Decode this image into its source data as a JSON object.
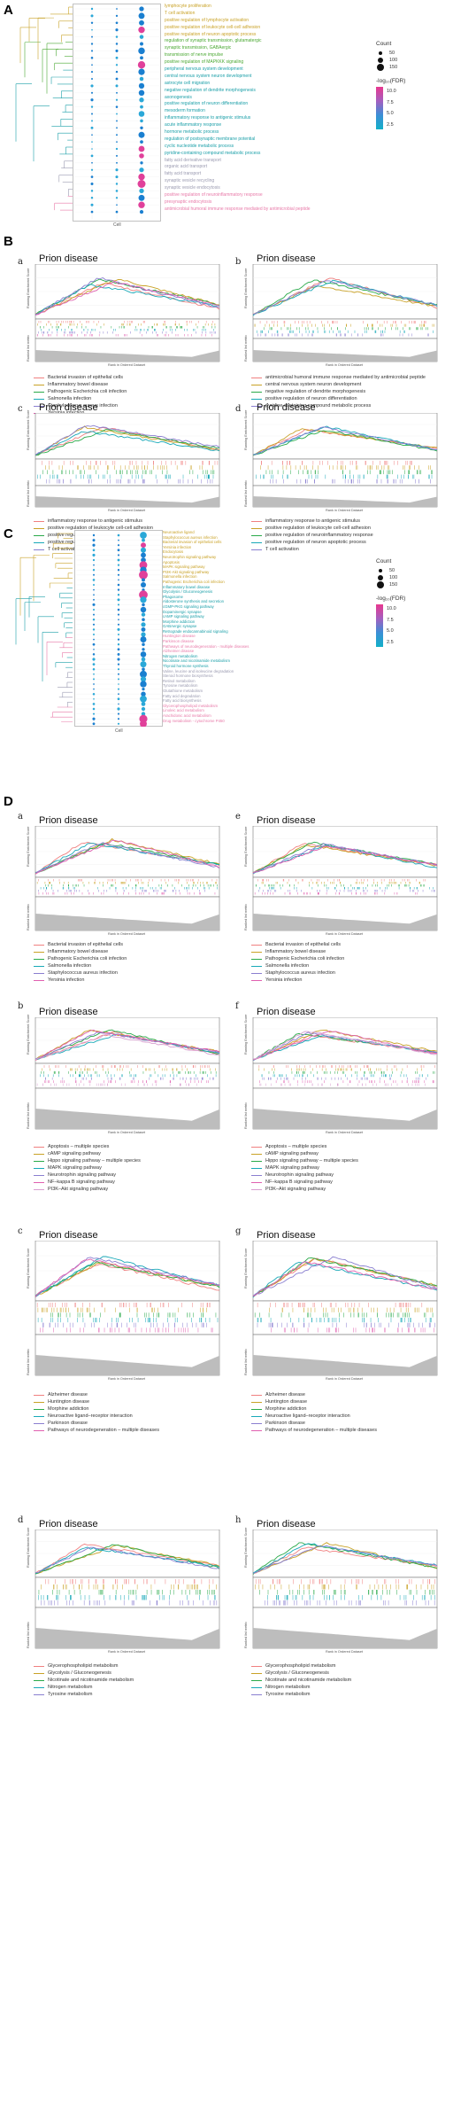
{
  "panels": {
    "A": "A",
    "B": "B",
    "C": "C",
    "D": "D"
  },
  "gsea_title": "Prion disease",
  "axis": {
    "res": "Running Enrichment Score",
    "ranked": "Ranked list metric",
    "x": "Rank in Ordered Dataset"
  },
  "dotplot_A": {
    "count_title": "Count",
    "count_values": [
      "50",
      "100",
      "150"
    ],
    "fdr_title": "-log₁₀(FDR)",
    "fdr_values": [
      "10.0",
      "7.5",
      "5.0",
      "2.5"
    ],
    "x_title": "Cell",
    "terms": [
      {
        "label": "lymphocyte proliferation",
        "color": "#c9a227"
      },
      {
        "label": "T cell activation",
        "color": "#c9a227"
      },
      {
        "label": "positive regulation of lymphocyte activation",
        "color": "#c9a227"
      },
      {
        "label": "positive regulation of leukocyte cell-cell adhesion",
        "color": "#c9a227"
      },
      {
        "label": "positive regulation of neuron apoptotic process",
        "color": "#c9a227"
      },
      {
        "label": "regulation of synaptic transmission, glutamatergic",
        "color": "#4aa832"
      },
      {
        "label": "synaptic transmission, GABAergic",
        "color": "#4aa832"
      },
      {
        "label": "transmission of nerve impulse",
        "color": "#4aa832"
      },
      {
        "label": "positive regulation of MAPKKK signaling",
        "color": "#4aa832"
      },
      {
        "label": "peripheral nervous system development",
        "color": "#1a9fa8"
      },
      {
        "label": "central nervous system neuron development",
        "color": "#1a9fa8"
      },
      {
        "label": "astrocyte cell migration",
        "color": "#1a9fa8"
      },
      {
        "label": "negative regulation of dendrite morphogenesis",
        "color": "#1a9fa8"
      },
      {
        "label": "axonogenesis",
        "color": "#1a9fa8"
      },
      {
        "label": "positive regulation of neuron differentiation",
        "color": "#1a9fa8"
      },
      {
        "label": "mesoderm formation",
        "color": "#1a9fa8"
      },
      {
        "label": "inflammatory response to antigenic stimulus",
        "color": "#1a9fa8"
      },
      {
        "label": "acute inflammatory response",
        "color": "#1a9fa8"
      },
      {
        "label": "hormone metabolic process",
        "color": "#1a9fa8"
      },
      {
        "label": "regulation of postsynaptic membrane potential",
        "color": "#1a9fa8"
      },
      {
        "label": "cyclic nucleotide metabolic process",
        "color": "#1a9fa8"
      },
      {
        "label": "pyridine-containing compound metabolic process",
        "color": "#1a9fa8"
      },
      {
        "label": "fatty acid derivative transport",
        "color": "#9a9ab0"
      },
      {
        "label": "organic acid transport",
        "color": "#9a9ab0"
      },
      {
        "label": "fatty acid transport",
        "color": "#9a9ab0"
      },
      {
        "label": "synaptic vesicle recycling",
        "color": "#9a9ab0"
      },
      {
        "label": "synaptic vesicle endocytosis",
        "color": "#9a9ab0"
      },
      {
        "label": "positive regulation of neuroinflammatory response",
        "color": "#e879a8"
      },
      {
        "label": "presynaptic endocytosis",
        "color": "#e879a8"
      },
      {
        "label": "antimicrobial humoral immune response mediated by antimicrobial peptide",
        "color": "#e879a8"
      }
    ]
  },
  "dotplot_C": {
    "count_title": "Count",
    "count_values": [
      "50",
      "100",
      "150"
    ],
    "fdr_title": "-log₁₀(FDR)",
    "fdr_values": [
      "10.0",
      "7.5",
      "5.0",
      "2.5"
    ],
    "x_title": "Cell",
    "terms": [
      {
        "label": "Neuroactive ligand",
        "color": "#c9a227"
      },
      {
        "label": "Staphylococcus aureus infection",
        "color": "#c9a227"
      },
      {
        "label": "Bacterial invasion of epithelial cells",
        "color": "#c9a227"
      },
      {
        "label": "Yersinia infection",
        "color": "#c9a227"
      },
      {
        "label": "Endocytosis",
        "color": "#c9a227"
      },
      {
        "label": "Neurotrophin signaling pathway",
        "color": "#c9a227"
      },
      {
        "label": "Apoptosis",
        "color": "#c9a227"
      },
      {
        "label": "MAPK signaling pathway",
        "color": "#c9a227"
      },
      {
        "label": "PI3K-Akt signaling pathway",
        "color": "#c9a227"
      },
      {
        "label": "Salmonella infection",
        "color": "#c9a227"
      },
      {
        "label": "Pathogenic Escherichia coli infection",
        "color": "#c9a227"
      },
      {
        "label": "Inflammatory bowel disease",
        "color": "#1a9fa8"
      },
      {
        "label": "Glycolysis / Gluconeogenesis",
        "color": "#1a9fa8"
      },
      {
        "label": "Phagosome",
        "color": "#1a9fa8"
      },
      {
        "label": "Aldosterone synthesis and secretion",
        "color": "#1a9fa8"
      },
      {
        "label": "cGMP-PKG signaling pathway",
        "color": "#1a9fa8"
      },
      {
        "label": "Dopaminergic synapse",
        "color": "#1a9fa8"
      },
      {
        "label": "cAMP signaling pathway",
        "color": "#1a9fa8"
      },
      {
        "label": "Morphine addiction",
        "color": "#1a9fa8"
      },
      {
        "label": "GABAergic synapse",
        "color": "#1a9fa8"
      },
      {
        "label": "Retrograde endocannabinoid signaling",
        "color": "#1a9fa8"
      },
      {
        "label": "Huntington disease",
        "color": "#e879a8"
      },
      {
        "label": "Parkinson disease",
        "color": "#e879a8"
      },
      {
        "label": "Pathways of neurodegeneration - multiple diseases",
        "color": "#e879a8"
      },
      {
        "label": "Alzheimer disease",
        "color": "#e879a8"
      },
      {
        "label": "Nitrogen metabolism",
        "color": "#1a9fa8"
      },
      {
        "label": "Nicotinate and nicotinamide metabolism",
        "color": "#1a9fa8"
      },
      {
        "label": "Thyroid hormone synthesis",
        "color": "#1a9fa8"
      },
      {
        "label": "Valine, leucine and isoleucine degradation",
        "color": "#9a9ab0"
      },
      {
        "label": "Steroid hormone biosynthesis",
        "color": "#9a9ab0"
      },
      {
        "label": "Retinol metabolism",
        "color": "#9a9ab0"
      },
      {
        "label": "Tyrosine metabolism",
        "color": "#9a9ab0"
      },
      {
        "label": "Glutathione metabolism",
        "color": "#9a9ab0"
      },
      {
        "label": "Fatty acid degradation",
        "color": "#9a9ab0"
      },
      {
        "label": "Fatty acid biosynthesis",
        "color": "#9a9ab0"
      },
      {
        "label": "Glycerophospholipid metabolism",
        "color": "#e879a8"
      },
      {
        "label": "Linoleic acid metabolism",
        "color": "#e879a8"
      },
      {
        "label": "Arachidonic acid metabolism",
        "color": "#e879a8"
      },
      {
        "label": "Drug metabolism - cytochrome P450",
        "color": "#e879a8"
      }
    ]
  },
  "gsea_B": [
    {
      "letter": "a",
      "legend": [
        "Bacterial invasion of epithelial cells",
        "Inflammatory bowel disease",
        "Pathogenic Escherichia coli infection",
        "Salmonella infection",
        "Staphylococcus aureus infection",
        "Yersinia infection"
      ]
    },
    {
      "letter": "b",
      "legend": [
        "antimicrobial humoral immune response mediated by antimicrobial peptide",
        "central nervous system neuron development",
        "negative regulation of dendrite morphogenesis",
        "positive regulation of neuron differentiation",
        "pyridine-containing compound metabolic process"
      ]
    },
    {
      "letter": "c",
      "legend": [
        "inflammatory response to antigenic stimulus",
        "positive regulation of leukocyte cell-cell adhesion",
        "positive regulation of neuroinflammatory response",
        "positive regulation of neuron apoptotic process",
        "T cell activation"
      ]
    },
    {
      "letter": "d",
      "legend": [
        "inflammatory response to antigenic stimulus",
        "positive regulation of leukocyte cell-cell adhesion",
        "positive regulation of neuroinflammatory response",
        "positive regulation of neuron apoptotic process",
        "T cell activation"
      ]
    }
  ],
  "gsea_D": [
    {
      "letter": "a",
      "legend": [
        "Bacterial invasion of epithelial cells",
        "Inflammatory bowel disease",
        "Pathogenic Escherichia coli infection",
        "Salmonella infection",
        "Staphylococcus aureus infection",
        "Yersinia infection"
      ]
    },
    {
      "letter": "e",
      "legend": [
        "Bacterial invasion of epithelial cells",
        "Inflammatory bowel disease",
        "Pathogenic Escherichia coli infection",
        "Salmonella infection",
        "Staphylococcus aureus infection",
        "Yersinia infection"
      ]
    },
    {
      "letter": "b",
      "legend": [
        "Apoptosis – multiple species",
        "cAMP signaling pathway",
        "Hippo signaling pathway – multiple species",
        "MAPK signaling pathway",
        "Neurotrophin signaling pathway",
        "NF–kappa B signaling pathway",
        "PI3K–Akt signaling pathway"
      ]
    },
    {
      "letter": "f",
      "legend": [
        "Apoptosis – multiple species",
        "cAMP signaling pathway",
        "Hippo signaling pathway – multiple species",
        "MAPK signaling pathway",
        "Neurotrophin signaling pathway",
        "NF–kappa B signaling pathway",
        "PI3K–Akt signaling pathway"
      ]
    },
    {
      "letter": "c",
      "legend": [
        "Alzheimer disease",
        "Huntington disease",
        "Morphine addiction",
        "Neuroactive ligand–receptor interaction",
        "Parkinson disease",
        "Pathways of neurodegeneration – multiple diseases"
      ]
    },
    {
      "letter": "g",
      "legend": [
        "Alzheimer disease",
        "Huntington disease",
        "Morphine addiction",
        "Neuroactive ligand–receptor interaction",
        "Parkinson disease",
        "Pathways of neurodegeneration – multiple diseases"
      ]
    },
    {
      "letter": "d",
      "legend": [
        "Glycerophospholipid metabolism",
        "Glycolysis / Gluconeogenesis",
        "Nicotinate and nicotinamide metabolism",
        "Nitrogen metabolism",
        "Tyrosine metabolism"
      ]
    },
    {
      "letter": "h",
      "legend": [
        "Glycerophospholipid metabolism",
        "Glycolysis / Gluconeogenesis",
        "Nicotinate and nicotinamide metabolism",
        "Nitrogen metabolism",
        "Tyrosine metabolism"
      ]
    }
  ],
  "series_colors": [
    "#f08080",
    "#c9a227",
    "#2aaa4a",
    "#19a9b8",
    "#8a7fd0",
    "#e060b0",
    "#d9a0d0"
  ]
}
